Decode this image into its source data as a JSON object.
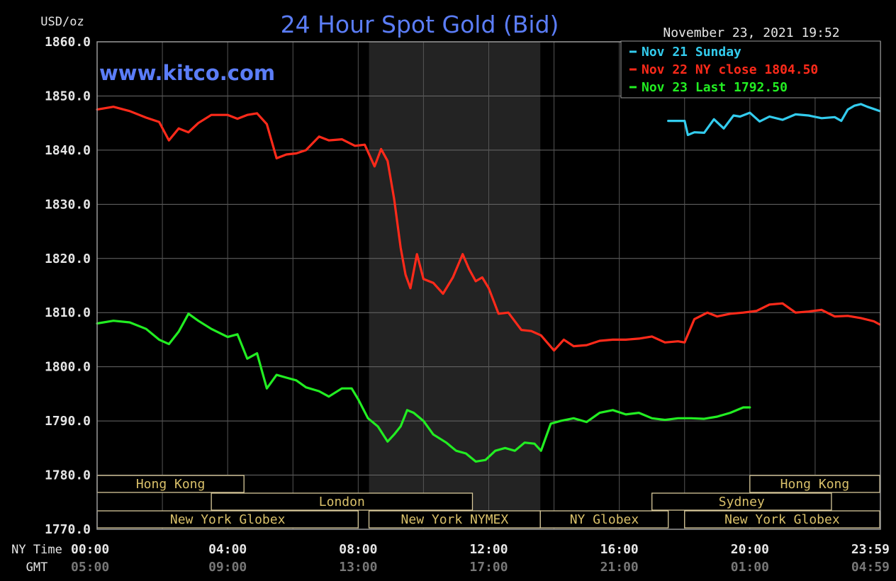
{
  "chart_data": {
    "type": "line",
    "title": "24 Hour Spot Gold (Bid)",
    "subtitle": "www.kitco.com",
    "ylabel": "USD/oz",
    "timestamp": "November 23, 2021 19:52",
    "ylim": [
      1770,
      1860
    ],
    "yticks": [
      "1860.0",
      "1850.0",
      "1840.0",
      "1830.0",
      "1820.0",
      "1810.0",
      "1800.0",
      "1790.0",
      "1780.0",
      "1770.0"
    ],
    "xlim": [
      0,
      24
    ],
    "x_row_labels": {
      "ny": "NY Time",
      "gmt": "GMT"
    },
    "xticks_ny": [
      "00:00",
      "04:00",
      "08:00",
      "12:00",
      "16:00",
      "20:00",
      "23:59"
    ],
    "xticks_gmt": [
      "05:00",
      "09:00",
      "13:00",
      "17:00",
      "21:00",
      "01:00",
      "04:59"
    ],
    "grid": true,
    "legend_position": "top-right",
    "shaded_session": [
      8.33,
      13.58
    ],
    "series": [
      {
        "name": "Nov 21 Sunday",
        "color": "#33ccee",
        "x": [
          17.5,
          18.0,
          18.1,
          18.3,
          18.6,
          18.9,
          19.2,
          19.5,
          19.7,
          20.0,
          20.3,
          20.6,
          21.0,
          21.4,
          21.8,
          22.2,
          22.6,
          22.8,
          23.0,
          23.2,
          23.4,
          23.6,
          23.8,
          23.98
        ],
        "y": [
          1845.4,
          1845.4,
          1842.8,
          1843.3,
          1843.2,
          1845.7,
          1844.0,
          1846.4,
          1846.2,
          1846.9,
          1845.3,
          1846.2,
          1845.6,
          1846.6,
          1846.4,
          1845.9,
          1846.1,
          1845.4,
          1847.5,
          1848.2,
          1848.5,
          1848.0,
          1847.6,
          1847.2
        ]
      },
      {
        "name": "Nov 22 NY close 1804.50",
        "color": "#ff2a1a",
        "x": [
          0.0,
          0.5,
          1.0,
          1.5,
          1.9,
          2.2,
          2.5,
          2.8,
          3.1,
          3.5,
          4.0,
          4.3,
          4.6,
          4.9,
          5.2,
          5.5,
          5.8,
          6.1,
          6.4,
          6.8,
          7.1,
          7.5,
          7.9,
          8.2,
          8.5,
          8.7,
          8.9,
          9.1,
          9.3,
          9.45,
          9.6,
          9.8,
          10.0,
          10.3,
          10.6,
          10.9,
          11.2,
          11.4,
          11.6,
          11.8,
          12.0,
          12.3,
          12.6,
          13.0,
          13.3,
          13.6,
          14.0,
          14.3,
          14.6,
          15.0,
          15.4,
          15.8,
          16.2,
          16.6,
          17.0,
          17.4,
          17.8,
          18.0,
          18.3,
          18.7,
          19.0,
          19.4,
          19.8,
          20.2,
          20.6,
          21.0,
          21.4,
          21.8,
          22.2,
          22.6,
          23.0,
          23.4,
          23.8,
          23.98
        ],
        "y": [
          1847.5,
          1848.0,
          1847.2,
          1846.0,
          1845.2,
          1841.8,
          1844.0,
          1843.3,
          1845.0,
          1846.5,
          1846.5,
          1845.8,
          1846.5,
          1846.8,
          1844.8,
          1838.5,
          1839.2,
          1839.4,
          1840.0,
          1842.5,
          1841.8,
          1842.0,
          1840.8,
          1841.0,
          1837.0,
          1840.2,
          1838.0,
          1831.0,
          1822.0,
          1817.0,
          1814.5,
          1820.8,
          1816.2,
          1815.5,
          1813.5,
          1816.5,
          1820.8,
          1818.0,
          1815.8,
          1816.5,
          1814.5,
          1809.8,
          1810.0,
          1806.8,
          1806.6,
          1805.8,
          1803.0,
          1805.0,
          1803.8,
          1804.0,
          1804.8,
          1805.0,
          1805.0,
          1805.2,
          1805.6,
          1804.5,
          1804.7,
          1804.5,
          1808.8,
          1810.0,
          1809.3,
          1809.8,
          1810.0,
          1810.3,
          1811.5,
          1811.7,
          1810.0,
          1810.2,
          1810.5,
          1809.3,
          1809.4,
          1809.0,
          1808.4,
          1807.8
        ]
      },
      {
        "name": "Nov 23 Last 1792.50",
        "color": "#22ee22",
        "x": [
          0.0,
          0.5,
          1.0,
          1.5,
          1.9,
          2.2,
          2.5,
          2.8,
          3.1,
          3.5,
          4.0,
          4.3,
          4.6,
          4.9,
          5.2,
          5.5,
          5.8,
          6.1,
          6.4,
          6.8,
          7.1,
          7.5,
          7.8,
          8.0,
          8.3,
          8.6,
          8.9,
          9.1,
          9.3,
          9.5,
          9.7,
          10.0,
          10.3,
          10.7,
          11.0,
          11.3,
          11.6,
          11.9,
          12.2,
          12.5,
          12.8,
          13.1,
          13.4,
          13.6,
          13.9,
          14.2,
          14.6,
          15.0,
          15.4,
          15.8,
          16.2,
          16.6,
          17.0,
          17.4,
          17.8,
          18.2,
          18.6,
          19.0,
          19.4,
          19.8,
          20.0
        ],
        "y": [
          1808.0,
          1808.5,
          1808.2,
          1807.0,
          1805.0,
          1804.2,
          1806.5,
          1809.8,
          1808.5,
          1807.0,
          1805.5,
          1806.0,
          1801.5,
          1802.5,
          1796.0,
          1798.5,
          1798.0,
          1797.5,
          1796.2,
          1795.5,
          1794.5,
          1796.0,
          1796.0,
          1794.0,
          1790.5,
          1789.0,
          1786.2,
          1787.5,
          1789.0,
          1792.0,
          1791.5,
          1790.0,
          1787.5,
          1786.0,
          1784.5,
          1784.0,
          1782.5,
          1782.8,
          1784.5,
          1785.0,
          1784.5,
          1786.0,
          1785.8,
          1784.5,
          1789.5,
          1790.0,
          1790.5,
          1789.8,
          1791.5,
          1792.0,
          1791.2,
          1791.5,
          1790.5,
          1790.2,
          1790.5,
          1790.5,
          1790.4,
          1790.8,
          1791.5,
          1792.5,
          1792.5
        ]
      }
    ],
    "sessions": [
      {
        "label": "Hong Kong",
        "row": 0,
        "start": 0.0,
        "end": 4.5
      },
      {
        "label": "Hong Kong",
        "row": 0,
        "start": 20.0,
        "end": 23.98
      },
      {
        "label": "London",
        "row": 1,
        "start": 3.5,
        "end": 11.5
      },
      {
        "label": "Sydney",
        "row": 1,
        "start": 17.0,
        "end": 22.5
      },
      {
        "label": "New York Globex",
        "row": 2,
        "start": 0.0,
        "end": 8.0
      },
      {
        "label": "New York NYMEX",
        "row": 2,
        "start": 8.33,
        "end": 13.58
      },
      {
        "label": "NY Globex",
        "row": 2,
        "start": 13.58,
        "end": 17.5
      },
      {
        "label": "New York Globex",
        "row": 2,
        "start": 18.0,
        "end": 23.98
      }
    ]
  }
}
